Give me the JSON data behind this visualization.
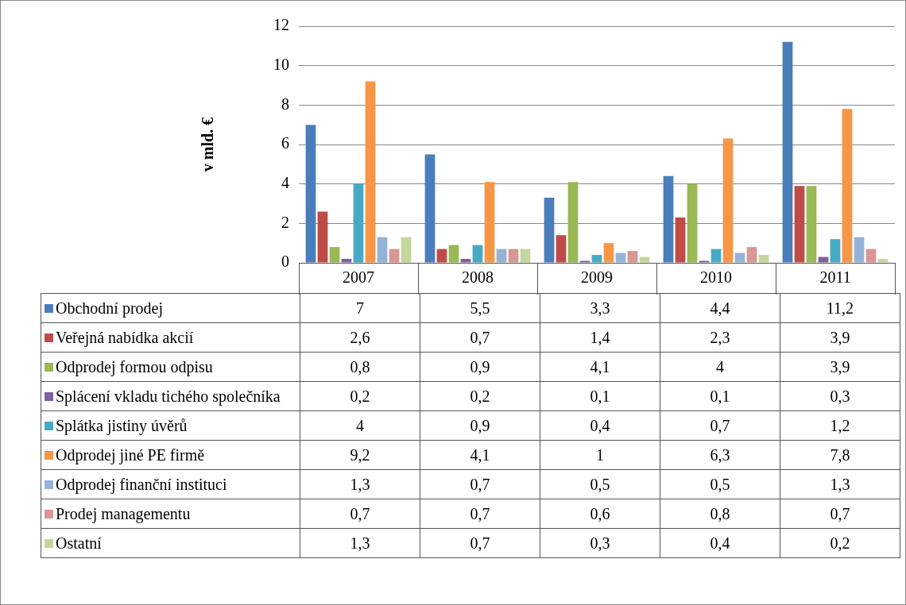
{
  "chart_data": {
    "type": "bar",
    "ylabel": "v mld. €",
    "categories": [
      "2007",
      "2008",
      "2009",
      "2010",
      "2011"
    ],
    "ylim": [
      0,
      12
    ],
    "yticks": [
      0,
      2,
      4,
      6,
      8,
      10,
      12
    ],
    "grid": "y",
    "legend": "bottom",
    "series": [
      {
        "name": "Obchodní prodej",
        "color": "#4a7ebb",
        "values": [
          7,
          5.5,
          3.3,
          4.4,
          11.2
        ],
        "value_labels": [
          "7",
          "5,5",
          "3,3",
          "4,4",
          "11,2"
        ]
      },
      {
        "name": "Veřejná nabídka akcií",
        "color": "#be4b48",
        "values": [
          2.6,
          0.7,
          1.4,
          2.3,
          3.9
        ],
        "value_labels": [
          "2,6",
          "0,7",
          "1,4",
          "2,3",
          "3,9"
        ]
      },
      {
        "name": "Odprodej formou odpisu",
        "color": "#98b954",
        "values": [
          0.8,
          0.9,
          4.1,
          4,
          3.9
        ],
        "value_labels": [
          "0,8",
          "0,9",
          "4,1",
          "4",
          "3,9"
        ]
      },
      {
        "name": "Splácení vkladu tichého společníka",
        "color": "#7d60a0",
        "values": [
          0.2,
          0.2,
          0.1,
          0.1,
          0.3
        ],
        "value_labels": [
          "0,2",
          "0,2",
          "0,1",
          "0,1",
          "0,3"
        ]
      },
      {
        "name": "Splátka jistiny úvěrů",
        "color": "#46aac5",
        "values": [
          4,
          0.9,
          0.4,
          0.7,
          1.2
        ],
        "value_labels": [
          "4",
          "0,9",
          "0,4",
          "0,7",
          "1,2"
        ]
      },
      {
        "name": "Odprodej jiné PE firmě",
        "color": "#f79646",
        "values": [
          9.2,
          4.1,
          1,
          6.3,
          7.8
        ],
        "value_labels": [
          "9,2",
          "4,1",
          "1",
          "6,3",
          "7,8"
        ]
      },
      {
        "name": "Odprodej finanční instituci",
        "color": "#95b3d7",
        "values": [
          1.3,
          0.7,
          0.5,
          0.5,
          1.3
        ],
        "value_labels": [
          "1,3",
          "0,7",
          "0,5",
          "0,5",
          "1,3"
        ]
      },
      {
        "name": "Prodej managementu",
        "color": "#d99694",
        "values": [
          0.7,
          0.7,
          0.6,
          0.8,
          0.7
        ],
        "value_labels": [
          "0,7",
          "0,7",
          "0,6",
          "0,8",
          "0,7"
        ]
      },
      {
        "name": "Ostatní",
        "color": "#c3d69b",
        "values": [
          1.3,
          0.7,
          0.3,
          0.4,
          0.2
        ],
        "value_labels": [
          "1,3",
          "0,7",
          "0,3",
          "0,4",
          "0,2"
        ]
      }
    ]
  }
}
